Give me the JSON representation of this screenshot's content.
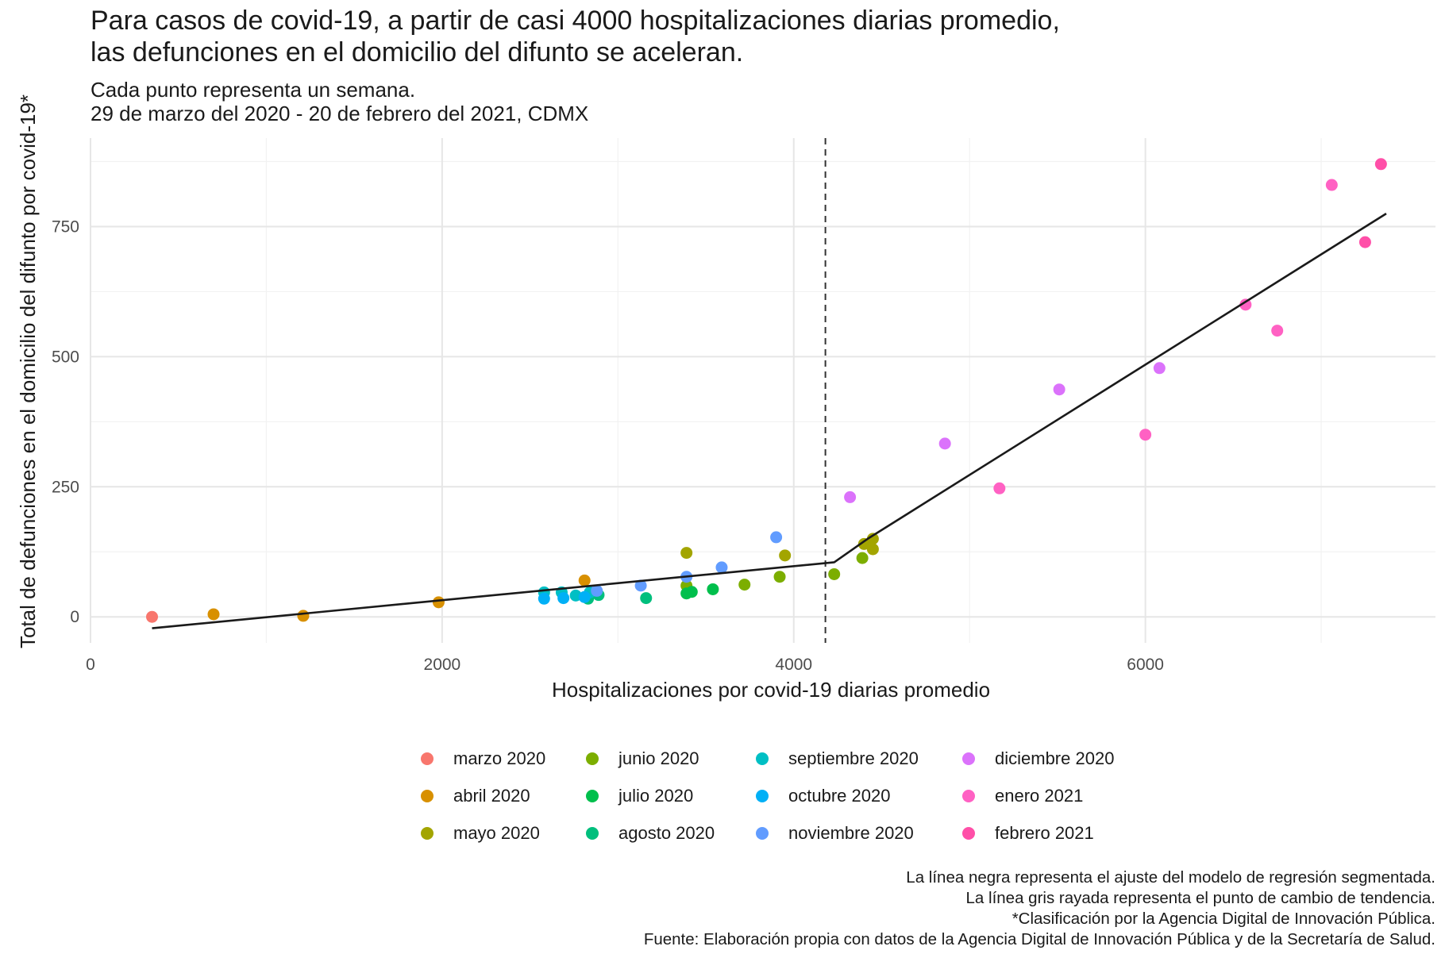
{
  "title": {
    "line1": "Para casos de covid-19, a partir de casi 4000 hospitalizaciones diarias promedio,",
    "line2": "las defunciones en el domicilio del difunto se aceleran."
  },
  "subtitle": {
    "line1": "Cada punto representa un semana.",
    "line2": "29 de marzo del 2020 - 20 de febrero del 2021, CDMX"
  },
  "caption": {
    "line1": "La línea negra representa el ajuste del modelo de regresión segmentada.",
    "line2": "La línea gris rayada representa el punto de cambio de tendencia.",
    "line3": "*Clasificación por la Agencia Digital de Innovación Pública.",
    "line4": "Fuente: Elaboración propia con datos de la Agencia Digital de Innovación Pública y de la Secretaría de Salud."
  },
  "legend": [
    {
      "label": "marzo 2020",
      "color": "#F8766D"
    },
    {
      "label": "abril 2020",
      "color": "#D89000"
    },
    {
      "label": "mayo 2020",
      "color": "#A3A500"
    },
    {
      "label": "junio 2020",
      "color": "#7CAE00"
    },
    {
      "label": "julio 2020",
      "color": "#00BF4C"
    },
    {
      "label": "agosto 2020",
      "color": "#00BF7D"
    },
    {
      "label": "septiembre 2020",
      "color": "#00BFC4"
    },
    {
      "label": "octubre 2020",
      "color": "#00B0F6"
    },
    {
      "label": "noviembre 2020",
      "color": "#619CFF"
    },
    {
      "label": "diciembre 2020",
      "color": "#DB72FB"
    },
    {
      "label": "enero 2021",
      "color": "#FF61C3"
    },
    {
      "label": "febrero 2021",
      "color": "#FF4FA8"
    }
  ],
  "chart_data": {
    "type": "scatter",
    "xlabel": "Hospitalizaciones por covid-19 diarias promedio",
    "ylabel": "Total de defunciones en el domicilio del difunto por covid-19*",
    "xlim": [
      0,
      7650
    ],
    "ylim": [
      -50,
      920
    ],
    "xticks": [
      0,
      2000,
      4000,
      6000
    ],
    "xtick_labels": [
      "0",
      "2000",
      "4000",
      "6000"
    ],
    "yticks": [
      0,
      250,
      500,
      750
    ],
    "ytick_labels": [
      "0",
      "250",
      "500",
      "750"
    ],
    "grid": true,
    "breakpoint_x": 4180,
    "fit_line": [
      [
        350,
        -22
      ],
      [
        4230,
        105
      ],
      [
        4420,
        150
      ],
      [
        7370,
        775
      ]
    ],
    "points": [
      {
        "x": 350,
        "y": 0,
        "month": "marzo 2020"
      },
      {
        "x": 700,
        "y": 5,
        "month": "abril 2020"
      },
      {
        "x": 1210,
        "y": 2,
        "month": "abril 2020"
      },
      {
        "x": 1980,
        "y": 28,
        "month": "abril 2020"
      },
      {
        "x": 2810,
        "y": 70,
        "month": "abril 2020"
      },
      {
        "x": 3390,
        "y": 123,
        "month": "mayo 2020"
      },
      {
        "x": 3950,
        "y": 118,
        "month": "mayo 2020"
      },
      {
        "x": 4400,
        "y": 140,
        "month": "mayo 2020"
      },
      {
        "x": 4450,
        "y": 150,
        "month": "mayo 2020"
      },
      {
        "x": 4450,
        "y": 130,
        "month": "mayo 2020"
      },
      {
        "x": 3720,
        "y": 62,
        "month": "junio 2020"
      },
      {
        "x": 3920,
        "y": 77,
        "month": "junio 2020"
      },
      {
        "x": 4230,
        "y": 82,
        "month": "junio 2020"
      },
      {
        "x": 4390,
        "y": 113,
        "month": "junio 2020"
      },
      {
        "x": 3390,
        "y": 60,
        "month": "junio 2020"
      },
      {
        "x": 3390,
        "y": 45,
        "month": "julio 2020"
      },
      {
        "x": 3420,
        "y": 48,
        "month": "julio 2020"
      },
      {
        "x": 3540,
        "y": 53,
        "month": "julio 2020"
      },
      {
        "x": 3160,
        "y": 36,
        "month": "agosto 2020"
      },
      {
        "x": 2830,
        "y": 35,
        "month": "agosto 2020"
      },
      {
        "x": 2890,
        "y": 42,
        "month": "agosto 2020"
      },
      {
        "x": 2580,
        "y": 47,
        "month": "septiembre 2020"
      },
      {
        "x": 2680,
        "y": 47,
        "month": "septiembre 2020"
      },
      {
        "x": 2760,
        "y": 41,
        "month": "septiembre 2020"
      },
      {
        "x": 2840,
        "y": 47,
        "month": "septiembre 2020"
      },
      {
        "x": 2580,
        "y": 35,
        "month": "octubre 2020"
      },
      {
        "x": 2690,
        "y": 36,
        "month": "octubre 2020"
      },
      {
        "x": 2810,
        "y": 38,
        "month": "octubre 2020"
      },
      {
        "x": 2880,
        "y": 50,
        "month": "noviembre 2020"
      },
      {
        "x": 3130,
        "y": 60,
        "month": "noviembre 2020"
      },
      {
        "x": 3390,
        "y": 77,
        "month": "noviembre 2020"
      },
      {
        "x": 3590,
        "y": 95,
        "month": "noviembre 2020"
      },
      {
        "x": 3900,
        "y": 153,
        "month": "noviembre 2020"
      },
      {
        "x": 4320,
        "y": 230,
        "month": "diciembre 2020"
      },
      {
        "x": 4860,
        "y": 333,
        "month": "diciembre 2020"
      },
      {
        "x": 5510,
        "y": 437,
        "month": "diciembre 2020"
      },
      {
        "x": 6080,
        "y": 478,
        "month": "diciembre 2020"
      },
      {
        "x": 5170,
        "y": 247,
        "month": "enero 2021"
      },
      {
        "x": 6000,
        "y": 350,
        "month": "enero 2021"
      },
      {
        "x": 6570,
        "y": 600,
        "month": "enero 2021"
      },
      {
        "x": 6750,
        "y": 550,
        "month": "enero 2021"
      },
      {
        "x": 7060,
        "y": 830,
        "month": "enero 2021"
      },
      {
        "x": 7250,
        "y": 720,
        "month": "febrero 2021"
      },
      {
        "x": 7340,
        "y": 870,
        "month": "febrero 2021"
      }
    ]
  }
}
